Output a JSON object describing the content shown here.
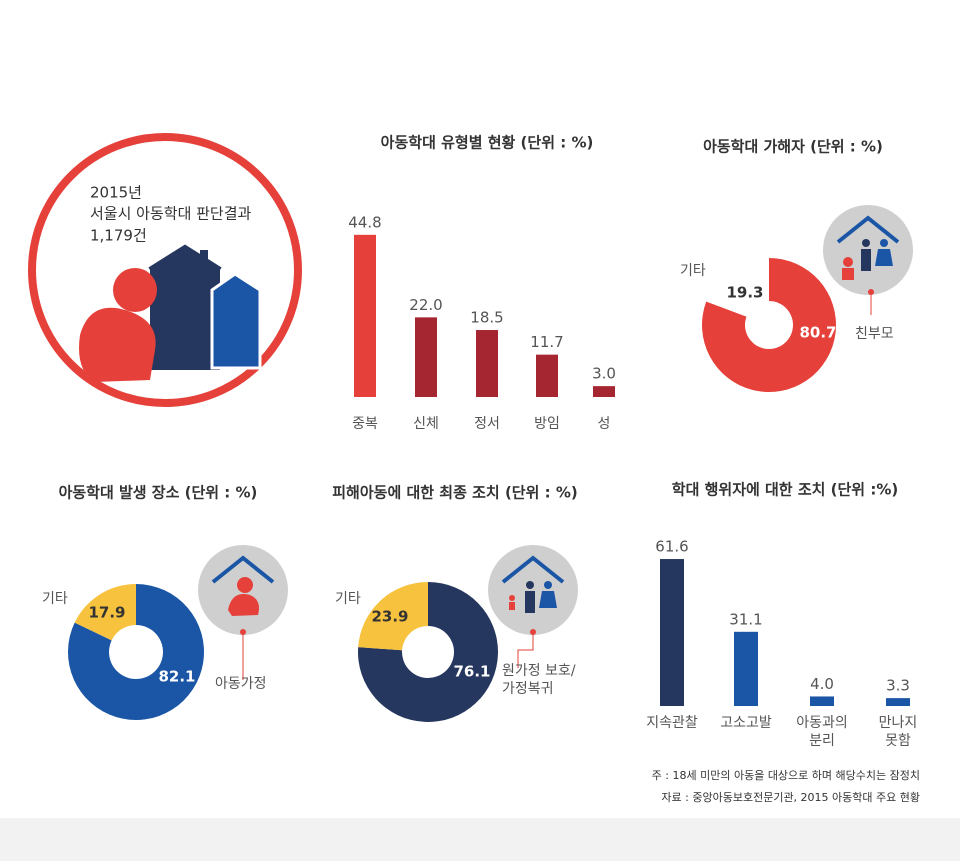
{
  "intro": {
    "year": "2015년",
    "title": "서울시 아동학대 판단결과",
    "count": "1,179건"
  },
  "chart_data": [
    {
      "type": "bar",
      "title": "아동학대 유형별 현황 (단위 : %)",
      "categories": [
        "중복",
        "신체",
        "정서",
        "방임",
        "성"
      ],
      "values": [
        44.8,
        22.0,
        18.5,
        11.7,
        3.0
      ],
      "value_labels": [
        "44.8",
        "22.0",
        "18.5",
        "11.7",
        "3.0"
      ],
      "colors": [
        "#e5403a",
        "#a52630",
        "#a52630",
        "#a52630",
        "#a52630"
      ],
      "ylim": [
        0,
        50
      ]
    },
    {
      "type": "donut",
      "title": "아동학대 가해자 (단위 : %)",
      "categories": [
        "친부모",
        "기타"
      ],
      "values": [
        80.7,
        19.3
      ],
      "colors": [
        "#e5403a",
        "#ffffff"
      ]
    },
    {
      "type": "donut",
      "title": "아동학대 발생 장소 (단위 : %)",
      "categories": [
        "아동가정",
        "기타"
      ],
      "values": [
        82.1,
        17.9
      ],
      "colors": [
        "#1b55a5",
        "#f7c23d"
      ]
    },
    {
      "type": "donut",
      "title": "피해아동에 대한 최종 조치 (단위 : %)",
      "categories": [
        "원가정 보호/가정복귀",
        "기타"
      ],
      "values": [
        76.1,
        23.9
      ],
      "colors": [
        "#26375f",
        "#f7c23d"
      ]
    },
    {
      "type": "bar",
      "title": "학대 행위자에 대한 조치 (단위 :%)",
      "categories": [
        "지속관찰",
        "고소고발",
        "아동과의 분리",
        "만나지 못함"
      ],
      "values": [
        61.6,
        31.1,
        4.0,
        3.3
      ],
      "value_labels": [
        "61.6",
        "31.1",
        "4.0",
        "3.3"
      ],
      "colors": [
        "#26375f",
        "#1b55a5",
        "#1b55a5",
        "#1b55a5"
      ],
      "ylim": [
        0,
        70
      ]
    }
  ],
  "notes": [
    "주 : 18세 미만의 아동을 대상으로 하며 해당수치는 잠정치",
    "자료 : 중앙아동보호전문기관, 2015 아동학대 주요 현황"
  ]
}
